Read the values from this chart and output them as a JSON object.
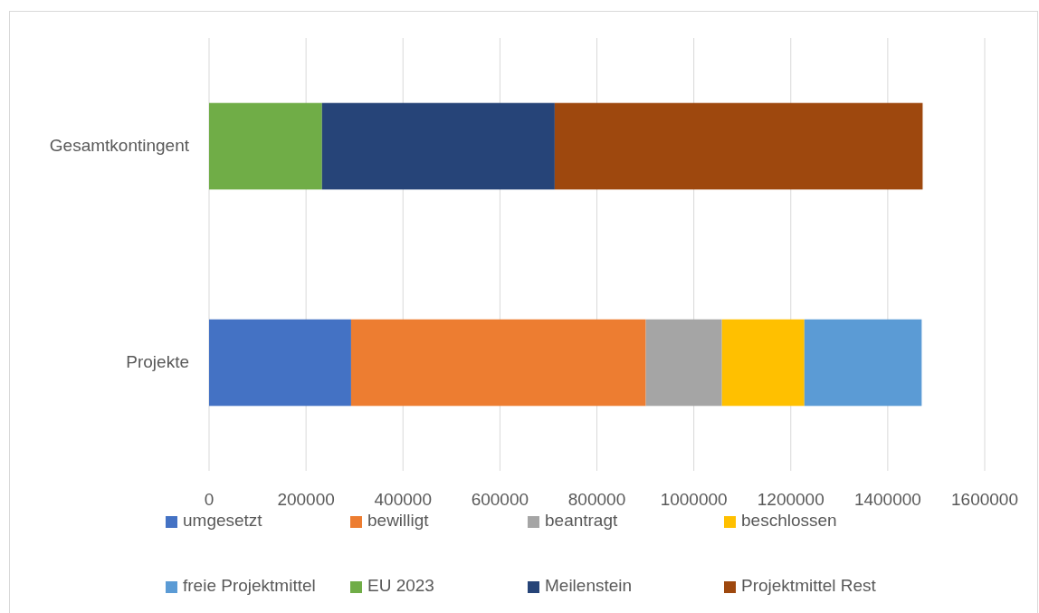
{
  "chart_data": {
    "type": "bar",
    "orientation": "horizontal",
    "stacked": true,
    "categories": [
      "Gesamtkontingent",
      "Projekte"
    ],
    "series": [
      {
        "name": "umgesetzt",
        "color": "#4472c4",
        "values": [
          null,
          293000
        ]
      },
      {
        "name": "bewilligt",
        "color": "#ed7d31",
        "values": [
          null,
          608000
        ]
      },
      {
        "name": "beantragt",
        "color": "#a5a5a5",
        "values": [
          null,
          157000
        ]
      },
      {
        "name": "beschlossen",
        "color": "#ffc000",
        "values": [
          null,
          170000
        ]
      },
      {
        "name": "freie Projektmittel",
        "color": "#5b9bd5",
        "values": [
          null,
          242000
        ]
      },
      {
        "name": "EU 2023",
        "color": "#70ad47",
        "values": [
          233000,
          null
        ]
      },
      {
        "name": "Meilenstein",
        "color": "#264478",
        "values": [
          480000,
          null
        ]
      },
      {
        "name": "Projektmittel Rest",
        "color": "#9e480e",
        "values": [
          759000,
          null
        ]
      }
    ],
    "xlim": [
      0,
      1600000
    ],
    "xticks": [
      0,
      200000,
      400000,
      600000,
      800000,
      1000000,
      1200000,
      1400000,
      1600000
    ],
    "grid": "x",
    "legend": "bottom"
  }
}
